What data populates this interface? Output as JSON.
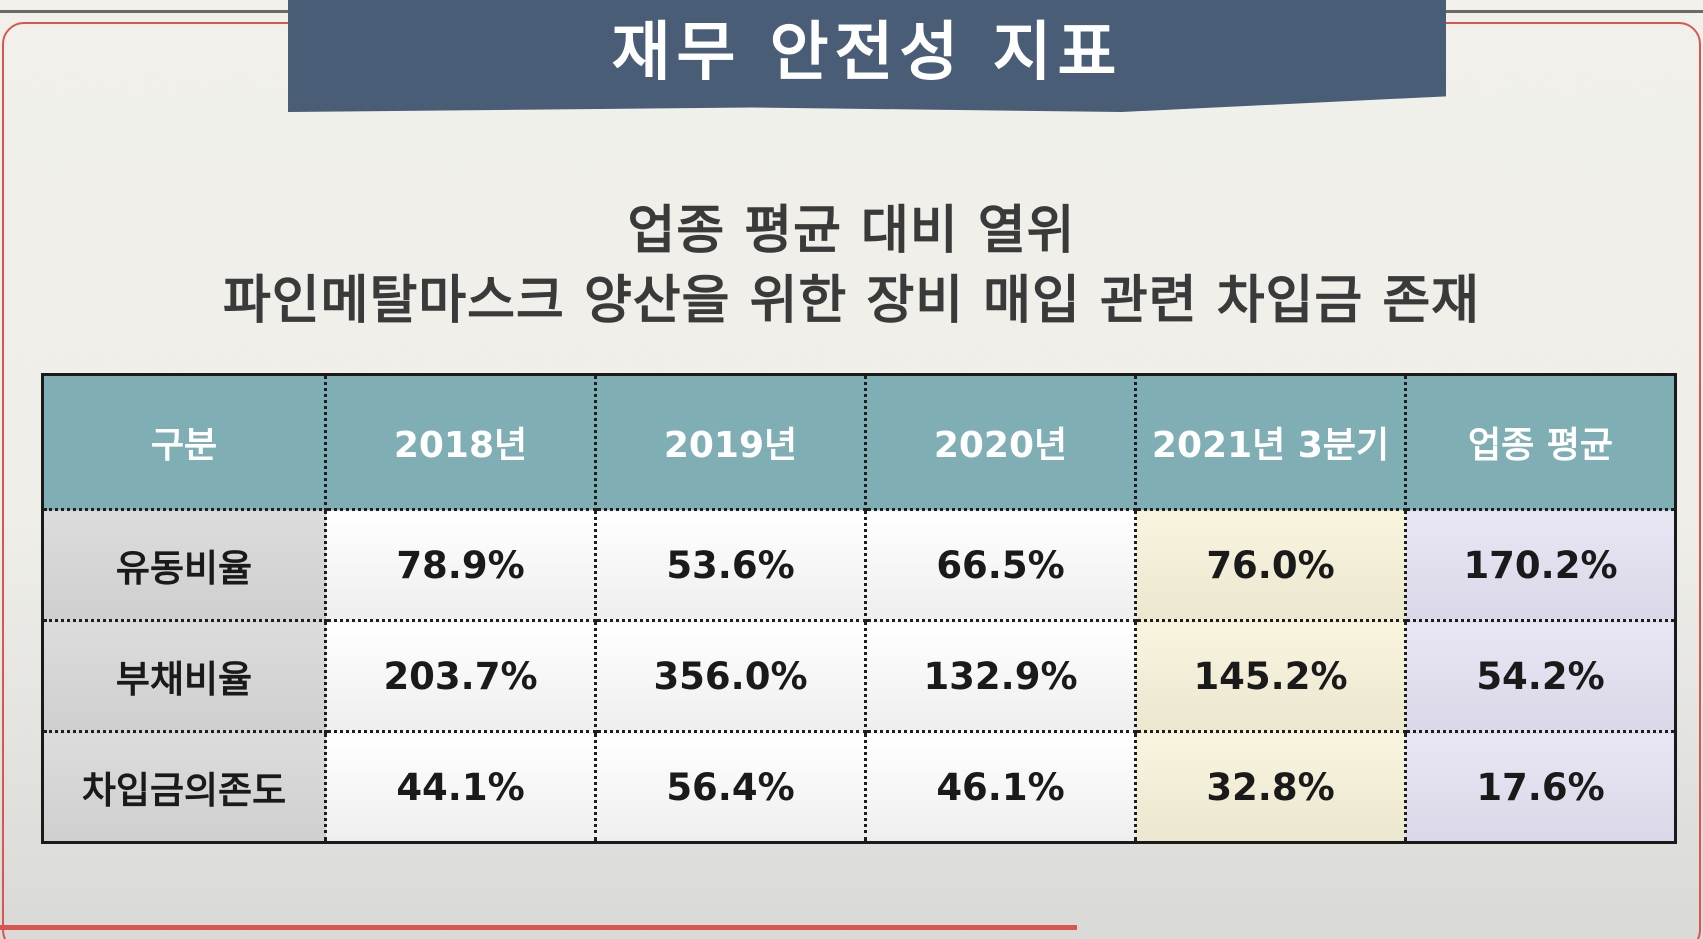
{
  "banner": {
    "title": "재무 안전성 지표"
  },
  "subtitle": {
    "line1": "업종 평균 대비 열위",
    "line2": "파인메탈마스크 양산을 위한 장비 매입 관련 차입금 존재"
  },
  "table": {
    "headers": [
      "구분",
      "2018년",
      "2019년",
      "2020년",
      "2021년 3분기",
      "업종 평균"
    ],
    "rows": [
      {
        "label": "유동비율",
        "values": [
          "78.9%",
          "53.6%",
          "66.5%",
          "76.0%",
          "170.2%"
        ]
      },
      {
        "label": "부채비율",
        "values": [
          "203.7%",
          "356.0%",
          "132.9%",
          "145.2%",
          "54.2%"
        ]
      },
      {
        "label": "차입금의존도",
        "values": [
          "44.1%",
          "56.4%",
          "46.1%",
          "32.8%",
          "17.6%"
        ]
      }
    ]
  },
  "colors": {
    "banner": "#4a5d76",
    "header": "#7faeb4",
    "highlight_q3": "#f8f4de",
    "highlight_avg": "#e9e6f4",
    "accent": "#d9564f"
  }
}
